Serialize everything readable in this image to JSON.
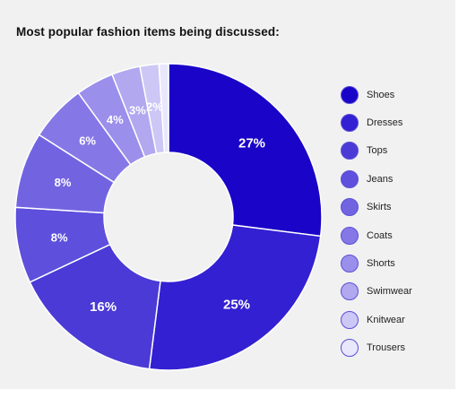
{
  "title": "Most popular fashion items being discussed:",
  "chart_data": {
    "type": "pie",
    "variant": "donut",
    "title": "Most popular fashion items being discussed:",
    "legend_position": "right",
    "categories": [
      "Shoes",
      "Dresses",
      "Tops",
      "Jeans",
      "Skirts",
      "Coats",
      "Shorts",
      "Swimwear",
      "Knitwear",
      "Trousers"
    ],
    "values": [
      27,
      25,
      16,
      8,
      8,
      6,
      4,
      3,
      2,
      1
    ],
    "labels": [
      "27%",
      "25%",
      "16%",
      "8%",
      "8%",
      "6%",
      "4%",
      "3%",
      "2%",
      ""
    ],
    "colors": [
      "#1a04c8",
      "#3320d2",
      "#4b3ad6",
      "#5e4fdc",
      "#7264e1",
      "#8578e6",
      "#9a8feb",
      "#b1a8ef",
      "#ccc7f5",
      "#e9e7fb"
    ]
  }
}
